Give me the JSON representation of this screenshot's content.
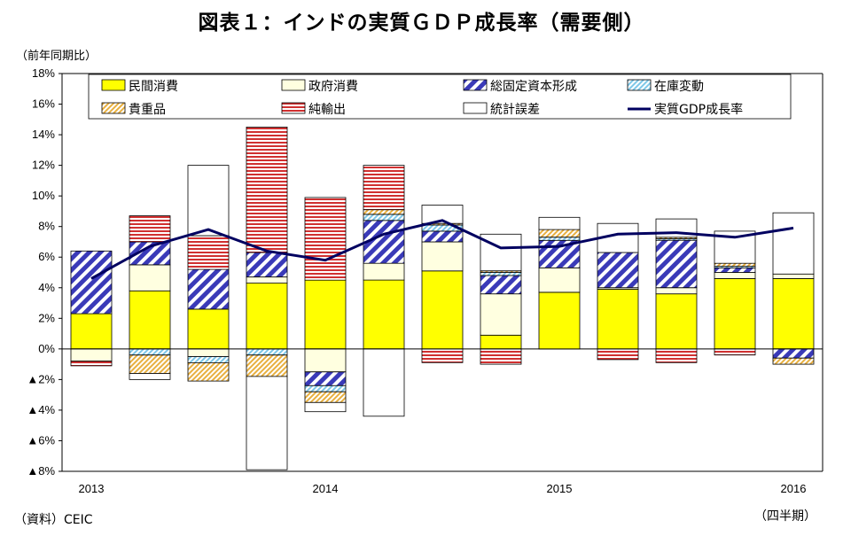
{
  "title": "図表１：インドの実質ＧＤＰ成長率（需要側）",
  "unit_label": "（前年同期比）",
  "source_note": "（資料）CEIC",
  "period_note": "（四半期）",
  "colors": {
    "private_consumption": "#ffff00",
    "government_consumption": "#ffffe0",
    "gross_fixed_capital_formation": "#3a3ab8",
    "inventory_change": "#7ec8e8",
    "valuables": "#e8b040",
    "net_exports": "#d03030",
    "statistical_discrepancy": "#ffffff",
    "gdp_growth_line": "#000060"
  },
  "chart_data": {
    "type": "bar",
    "stacked": true,
    "x": [
      "2013Q1",
      "2013Q2",
      "2013Q3",
      "2013Q4",
      "2014Q1",
      "2014Q2",
      "2014Q3",
      "2014Q4",
      "2015Q1",
      "2015Q2",
      "2015Q3",
      "2015Q4",
      "2016Q1"
    ],
    "x_tick_labels": [
      {
        "index": 0,
        "label": "2013"
      },
      {
        "index": 4,
        "label": "2014"
      },
      {
        "index": 8,
        "label": "2015"
      },
      {
        "index": 12,
        "label": "2016"
      }
    ],
    "ylim": [
      -8,
      18
    ],
    "yticks": [
      {
        "value": 18,
        "label": "18%"
      },
      {
        "value": 16,
        "label": "16%"
      },
      {
        "value": 14,
        "label": "14%"
      },
      {
        "value": 12,
        "label": "12%"
      },
      {
        "value": 10,
        "label": "10%"
      },
      {
        "value": 8,
        "label": "8%"
      },
      {
        "value": 6,
        "label": "6%"
      },
      {
        "value": 4,
        "label": "4%"
      },
      {
        "value": 2,
        "label": "2%"
      },
      {
        "value": 0,
        "label": "0%"
      },
      {
        "value": -2,
        "label": "▲2%"
      },
      {
        "value": -4,
        "label": "▲4%"
      },
      {
        "value": -6,
        "label": "▲6%"
      },
      {
        "value": -8,
        "label": "▲8%"
      }
    ],
    "grid": false,
    "legend_position": "top",
    "series": [
      {
        "name": "民間消費",
        "key": "private_consumption",
        "pattern": "solid",
        "values": [
          2.3,
          3.8,
          2.6,
          4.3,
          4.5,
          4.5,
          5.1,
          0.9,
          3.7,
          3.9,
          3.6,
          4.6,
          4.6
        ]
      },
      {
        "name": "政府消費",
        "key": "government_consumption",
        "pattern": "solid",
        "values": [
          -0.8,
          1.7,
          -0.5,
          0.4,
          -1.5,
          1.1,
          1.9,
          2.7,
          1.6,
          0.1,
          0.4,
          0.4,
          0.3
        ]
      },
      {
        "name": "総固定資本形成",
        "key": "gross_fixed_capital_formation",
        "pattern": "diagonal",
        "values": [
          4.1,
          1.5,
          2.6,
          1.6,
          -0.9,
          2.8,
          0.7,
          1.2,
          1.8,
          2.3,
          3.1,
          0.3,
          -0.6
        ]
      },
      {
        "name": "在庫変動",
        "key": "inventory_change",
        "pattern": "diagonal-fine",
        "values": [
          0.0,
          -0.4,
          -0.4,
          -0.4,
          -0.4,
          0.4,
          0.4,
          0.2,
          0.2,
          0.0,
          0.1,
          0.1,
          0.0
        ]
      },
      {
        "name": "貴重品",
        "key": "valuables",
        "pattern": "diagonal-fine",
        "values": [
          0.0,
          -1.2,
          -1.2,
          -1.4,
          -0.7,
          0.3,
          0.1,
          0.1,
          0.5,
          0.0,
          0.1,
          0.2,
          -0.4
        ]
      },
      {
        "name": "純輸出",
        "key": "net_exports",
        "pattern": "horizontal-stripes",
        "values": [
          -0.3,
          1.7,
          2.2,
          8.2,
          5.4,
          2.9,
          -0.9,
          -1.0,
          0.0,
          -0.7,
          -0.9,
          -0.4,
          0.0
        ]
      },
      {
        "name": "統計誤差",
        "key": "statistical_discrepancy",
        "pattern": "solid",
        "values": [
          0.0,
          -0.4,
          4.6,
          -6.1,
          -0.6,
          -4.4,
          1.2,
          2.4,
          0.8,
          1.9,
          1.2,
          2.1,
          4.0
        ]
      }
    ],
    "line_series": {
      "name": "実質GDP成長率",
      "key": "gdp_growth_line",
      "values": [
        4.6,
        6.7,
        7.8,
        6.4,
        5.8,
        7.5,
        8.4,
        6.6,
        6.7,
        7.5,
        7.6,
        7.3,
        7.9
      ]
    }
  }
}
